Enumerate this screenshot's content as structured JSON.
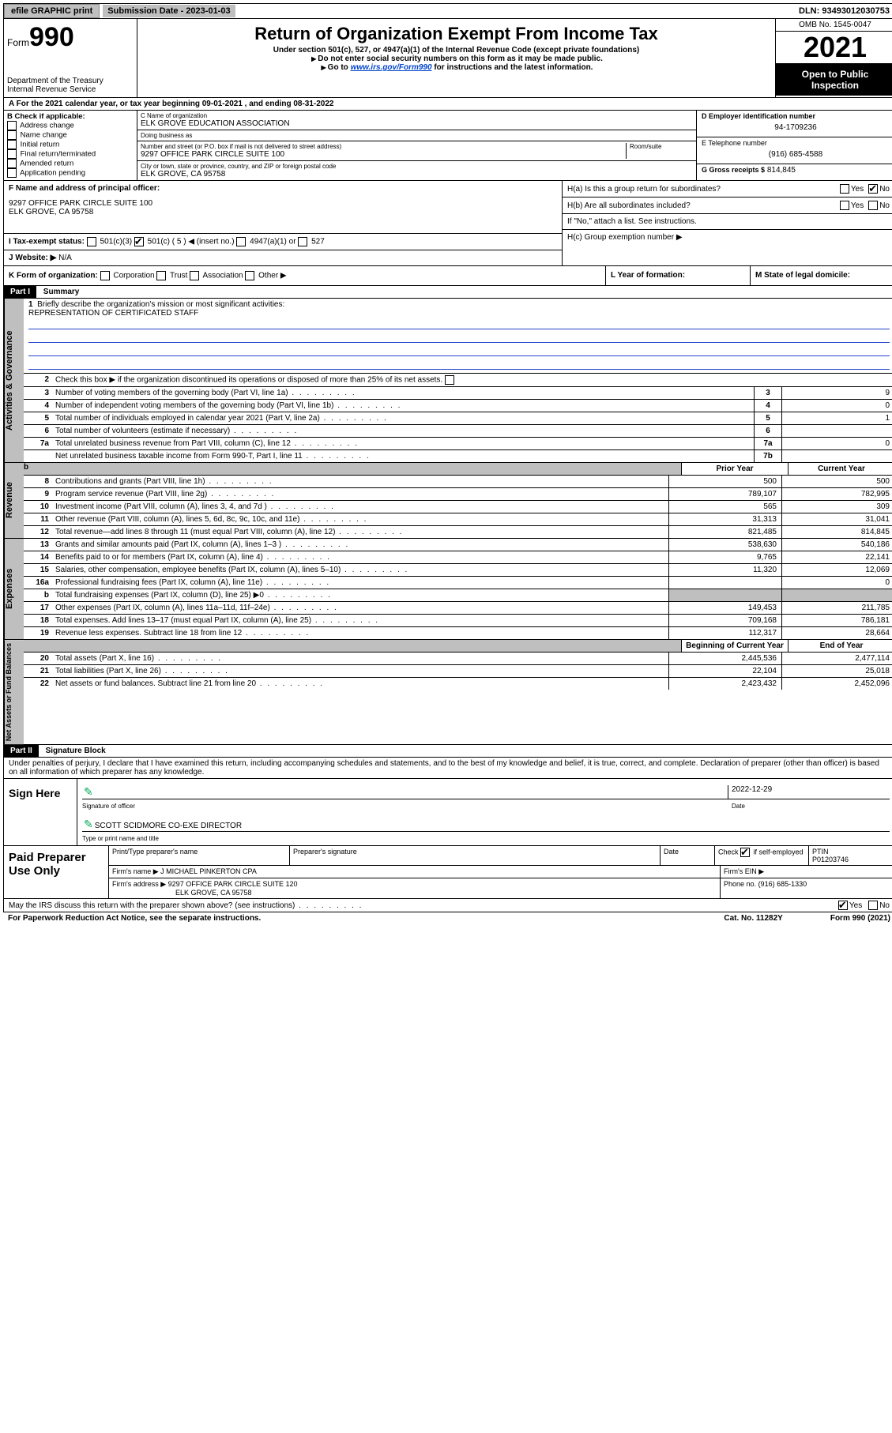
{
  "topbar": {
    "efile": "efile GRAPHIC print",
    "submission_label": "Submission Date - 2023-01-03",
    "dln_label": "DLN: 93493012030753"
  },
  "header": {
    "form_prefix": "Form",
    "form_number": "990",
    "dept": "Department of the Treasury",
    "irs": "Internal Revenue Service",
    "title": "Return of Organization Exempt From Income Tax",
    "sub1": "Under section 501(c), 527, or 4947(a)(1) of the Internal Revenue Code (except private foundations)",
    "sub2": "Do not enter social security numbers on this form as it may be made public.",
    "sub3_pre": "Go to ",
    "sub3_link": "www.irs.gov/Form990",
    "sub3_post": " for instructions and the latest information.",
    "omb": "OMB No. 1545-0047",
    "year": "2021",
    "open": "Open to Public Inspection"
  },
  "line_a": {
    "prefix": "A For the 2021 calendar year, or tax year beginning ",
    "begin": "09-01-2021",
    "mid": " , and ending ",
    "end": "08-31-2022"
  },
  "sec_b": {
    "title": "B Check if applicable:",
    "items": [
      "Address change",
      "Name change",
      "Initial return",
      "Final return/terminated",
      "Amended return",
      "Application pending"
    ]
  },
  "sec_c": {
    "name_lbl": "C Name of organization",
    "name": "ELK GROVE EDUCATION ASSOCIATION",
    "dba_lbl": "Doing business as",
    "dba": "",
    "street_lbl": "Number and street (or P.O. box if mail is not delivered to street address)",
    "room_lbl": "Room/suite",
    "street": "9297 OFFICE PARK CIRCLE SUITE 100",
    "city_lbl": "City or town, state or province, country, and ZIP or foreign postal code",
    "city": "ELK GROVE, CA  95758"
  },
  "sec_d": {
    "ein_lbl": "D Employer identification number",
    "ein": "94-1709236",
    "phone_lbl": "E Telephone number",
    "phone": "(916) 685-4588",
    "gross_lbl": "G Gross receipts $",
    "gross": "814,845"
  },
  "sec_f": {
    "lbl": "F Name and address of principal officer:",
    "addr1": "9297 OFFICE PARK CIRCLE SUITE 100",
    "addr2": "ELK GROVE, CA  95758"
  },
  "sec_h": {
    "ha": "H(a)  Is this a group return for subordinates?",
    "hb": "H(b)  Are all subordinates included?",
    "hb_note": "If \"No,\" attach a list. See instructions.",
    "hc": "H(c)  Group exemption number ▶",
    "yes": "Yes",
    "no": "No"
  },
  "sec_i": {
    "lbl": "I   Tax-exempt status:",
    "o1": "501(c)(3)",
    "o2": "501(c) ( 5 ) ◀ (insert no.)",
    "o3": "4947(a)(1) or",
    "o4": "527"
  },
  "sec_j": {
    "lbl": "J   Website: ▶",
    "val": "N/A"
  },
  "sec_k": {
    "lbl": "K Form of organization:",
    "o1": "Corporation",
    "o2": "Trust",
    "o3": "Association",
    "o4": "Other ▶"
  },
  "sec_l": {
    "lbl": "L Year of formation:"
  },
  "sec_m": {
    "lbl": "M State of legal domicile:"
  },
  "parts": {
    "p1": "Part I",
    "p1_title": "Summary",
    "p2": "Part II",
    "p2_title": "Signature Block"
  },
  "summary": {
    "q1": "Briefly describe the organization's mission or most significant activities:",
    "q1_val": "REPRESENTATION OF CERTIFICATED STAFF",
    "q2": "Check this box ▶       if the organization discontinued its operations or disposed of more than 25% of its net assets.",
    "lines_single": [
      {
        "n": "3",
        "d": "Number of voting members of the governing body (Part VI, line 1a)",
        "box": "3",
        "v": "9"
      },
      {
        "n": "4",
        "d": "Number of independent voting members of the governing body (Part VI, line 1b)",
        "box": "4",
        "v": "0"
      },
      {
        "n": "5",
        "d": "Total number of individuals employed in calendar year 2021 (Part V, line 2a)",
        "box": "5",
        "v": "1"
      },
      {
        "n": "6",
        "d": "Total number of volunteers (estimate if necessary)",
        "box": "6",
        "v": ""
      },
      {
        "n": "7a",
        "d": "Total unrelated business revenue from Part VIII, column (C), line 12",
        "box": "7a",
        "v": "0"
      },
      {
        "n": "",
        "d": "Net unrelated business taxable income from Form 990-T, Part I, line 11",
        "box": "7b",
        "v": ""
      }
    ],
    "col_b": "b",
    "prior": "Prior Year",
    "current": "Current Year",
    "revenue": [
      {
        "n": "8",
        "d": "Contributions and grants (Part VIII, line 1h)",
        "p": "500",
        "c": "500"
      },
      {
        "n": "9",
        "d": "Program service revenue (Part VIII, line 2g)",
        "p": "789,107",
        "c": "782,995"
      },
      {
        "n": "10",
        "d": "Investment income (Part VIII, column (A), lines 3, 4, and 7d )",
        "p": "565",
        "c": "309"
      },
      {
        "n": "11",
        "d": "Other revenue (Part VIII, column (A), lines 5, 6d, 8c, 9c, 10c, and 11e)",
        "p": "31,313",
        "c": "31,041"
      },
      {
        "n": "12",
        "d": "Total revenue—add lines 8 through 11 (must equal Part VIII, column (A), line 12)",
        "p": "821,485",
        "c": "814,845"
      }
    ],
    "expenses": [
      {
        "n": "13",
        "d": "Grants and similar amounts paid (Part IX, column (A), lines 1–3 )",
        "p": "538,630",
        "c": "540,186"
      },
      {
        "n": "14",
        "d": "Benefits paid to or for members (Part IX, column (A), line 4)",
        "p": "9,765",
        "c": "22,141"
      },
      {
        "n": "15",
        "d": "Salaries, other compensation, employee benefits (Part IX, column (A), lines 5–10)",
        "p": "11,320",
        "c": "12,069"
      },
      {
        "n": "16a",
        "d": "Professional fundraising fees (Part IX, column (A), line 11e)",
        "p": "",
        "c": "0"
      },
      {
        "n": "b",
        "d": "Total fundraising expenses (Part IX, column (D), line 25) ▶0",
        "p": "shade",
        "c": "shade"
      },
      {
        "n": "17",
        "d": "Other expenses (Part IX, column (A), lines 11a–11d, 11f–24e)",
        "p": "149,453",
        "c": "211,785"
      },
      {
        "n": "18",
        "d": "Total expenses. Add lines 13–17 (must equal Part IX, column (A), line 25)",
        "p": "709,168",
        "c": "786,181"
      },
      {
        "n": "19",
        "d": "Revenue less expenses. Subtract line 18 from line 12",
        "p": "112,317",
        "c": "28,664"
      }
    ],
    "begin_col": "Beginning of Current Year",
    "end_col": "End of Year",
    "netassets": [
      {
        "n": "20",
        "d": "Total assets (Part X, line 16)",
        "p": "2,445,536",
        "c": "2,477,114"
      },
      {
        "n": "21",
        "d": "Total liabilities (Part X, line 26)",
        "p": "22,104",
        "c": "25,018"
      },
      {
        "n": "22",
        "d": "Net assets or fund balances. Subtract line 21 from line 20",
        "p": "2,423,432",
        "c": "2,452,096"
      }
    ]
  },
  "side_labels": {
    "gov": "Activities & Governance",
    "rev": "Revenue",
    "exp": "Expenses",
    "net": "Net Assets or Fund Balances"
  },
  "part2": {
    "decl": "Under penalties of perjury, I declare that I have examined this return, including accompanying schedules and statements, and to the best of my knowledge and belief, it is true, correct, and complete. Declaration of preparer (other than officer) is based on all information of which preparer has any knowledge."
  },
  "sign": {
    "label": "Sign Here",
    "sig_lbl": "Signature of officer",
    "date_lbl": "Date",
    "date": "2022-12-29",
    "name": "SCOTT SCIDMORE CO-EXE DIRECTOR",
    "name_lbl": "Type or print name and title"
  },
  "preparer": {
    "label": "Paid Preparer Use Only",
    "h1": "Print/Type preparer's name",
    "h2": "Preparer's signature",
    "h3": "Date",
    "h4_check": "Check",
    "h4_if": "if self-employed",
    "h5": "PTIN",
    "ptin": "P01203746",
    "firm_name_lbl": "Firm's name   ▶",
    "firm_name": "J MICHAEL PINKERTON CPA",
    "firm_ein_lbl": "Firm's EIN ▶",
    "firm_addr_lbl": "Firm's address ▶",
    "firm_addr1": "9297 OFFICE PARK CIRCLE SUITE 120",
    "firm_addr2": "ELK GROVE, CA  95758",
    "phone_lbl": "Phone no.",
    "phone": "(916) 685-1330"
  },
  "footer": {
    "discuss": "May the IRS discuss this return with the preparer shown above? (see instructions)",
    "yes": "Yes",
    "no": "No",
    "paperwork": "For Paperwork Reduction Act Notice, see the separate instructions.",
    "cat": "Cat. No. 11282Y",
    "form": "Form 990 (2021)"
  }
}
